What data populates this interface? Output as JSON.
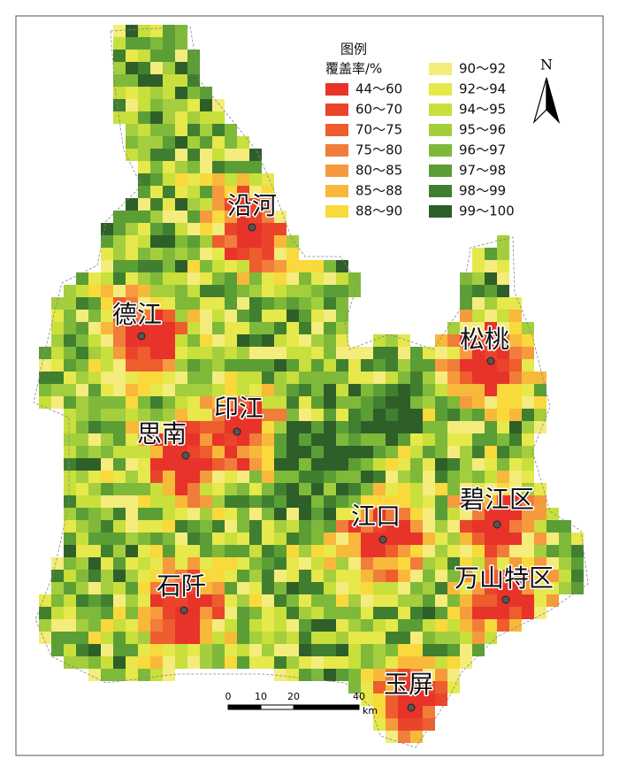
{
  "legend": {
    "title": "图例",
    "subtitle": "覆盖率/%",
    "items": [
      {
        "label": "44～60",
        "color": "#e8332a"
      },
      {
        "label": "60～70",
        "color": "#ea452b"
      },
      {
        "label": "70～75",
        "color": "#ed5d2e"
      },
      {
        "label": "75～80",
        "color": "#f07d3a"
      },
      {
        "label": "80～85",
        "color": "#f59b3d"
      },
      {
        "label": "85～88",
        "color": "#f8b93a"
      },
      {
        "label": "88～90",
        "color": "#f9d93c"
      },
      {
        "label": "90～92",
        "color": "#f4ec7c"
      },
      {
        "label": "92～94",
        "color": "#e6e84c"
      },
      {
        "label": "94～95",
        "color": "#c8df3c"
      },
      {
        "label": "95～96",
        "color": "#a4ce3d"
      },
      {
        "label": "96～97",
        "color": "#7fb93a"
      },
      {
        "label": "97～98",
        "color": "#5b9e36"
      },
      {
        "label": "98～99",
        "color": "#417f30"
      },
      {
        "label": "99～100",
        "color": "#2e5f29"
      }
    ]
  },
  "north": "N",
  "scale_bar": {
    "labels": [
      "0",
      "10",
      "20",
      "40"
    ],
    "unit": "km"
  },
  "places": [
    {
      "name": "沿河"
    },
    {
      "name": "德江"
    },
    {
      "name": "松桃"
    },
    {
      "name": "印江"
    },
    {
      "name": "思南"
    },
    {
      "name": "江口"
    },
    {
      "name": "碧江区"
    },
    {
      "name": "万山特区"
    },
    {
      "name": "石阡"
    },
    {
      "name": "玉屏"
    }
  ]
}
